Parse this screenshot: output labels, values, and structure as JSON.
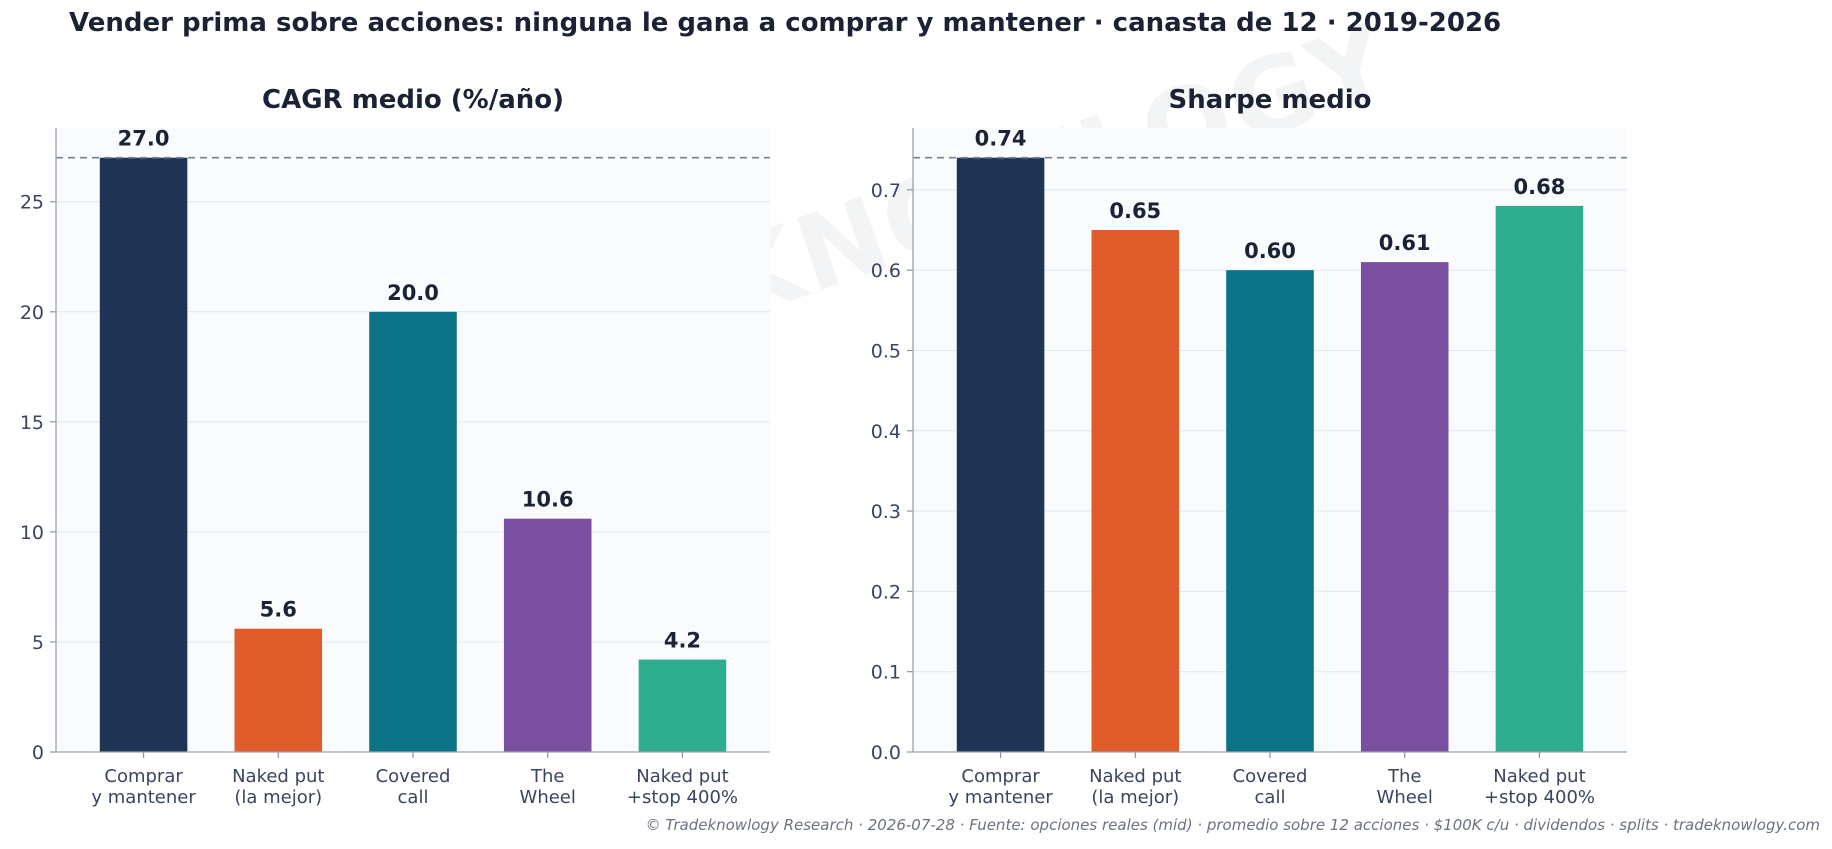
{
  "suptitle": "Vender prima sobre acciones: ninguna le gana a comprar y mantener · canasta de 12 · 2019-2026",
  "footer": "© Tradeknowlogy Research   ·   2026-07-28   ·   Fuente: opciones reales (mid) · promedio sobre 12 acciones · $100K c/u · dividendos · splits   ·   tradeknowlogy.com",
  "watermark": "TRADEKNOWLOGY",
  "colors": {
    "bars": [
      "#1f3556",
      "#e05c2b",
      "#0c7285",
      "#7a4fa0",
      "#2eae8e"
    ],
    "plot_bg": "#f9fbfd",
    "reference_line": "#7a8290"
  },
  "chart_data": [
    {
      "type": "bar",
      "title": "CAGR medio (%/año)",
      "categories": [
        [
          "Comprar",
          "y mantener"
        ],
        [
          "Naked put",
          "(la mejor)"
        ],
        [
          "Covered",
          "call"
        ],
        [
          "The",
          "Wheel"
        ],
        [
          "Naked put",
          "+stop 400%"
        ]
      ],
      "values": [
        27.0,
        5.6,
        20.0,
        10.6,
        4.2
      ],
      "value_labels": [
        "27.0",
        "5.6",
        "20.0",
        "10.6",
        "4.2"
      ],
      "ylim": [
        0,
        28.35
      ],
      "yticks": [
        0,
        5,
        10,
        15,
        20,
        25
      ],
      "ytick_labels": [
        "0",
        "5",
        "10",
        "15",
        "20",
        "25"
      ],
      "reference_line": 27.0,
      "grid": true
    },
    {
      "type": "bar",
      "title": "Sharpe medio",
      "categories": [
        [
          "Comprar",
          "y mantener"
        ],
        [
          "Naked put",
          "(la mejor)"
        ],
        [
          "Covered",
          "call"
        ],
        [
          "The",
          "Wheel"
        ],
        [
          "Naked put",
          "+stop 400%"
        ]
      ],
      "values": [
        0.74,
        0.65,
        0.6,
        0.61,
        0.68
      ],
      "value_labels": [
        "0.74",
        "0.65",
        "0.60",
        "0.61",
        "0.68"
      ],
      "ylim": [
        0,
        0.777
      ],
      "yticks": [
        0.0,
        0.1,
        0.2,
        0.3,
        0.4,
        0.5,
        0.6,
        0.7
      ],
      "ytick_labels": [
        "0.0",
        "0.1",
        "0.2",
        "0.3",
        "0.4",
        "0.5",
        "0.6",
        "0.7"
      ],
      "reference_line": 0.74,
      "grid": true
    }
  ]
}
